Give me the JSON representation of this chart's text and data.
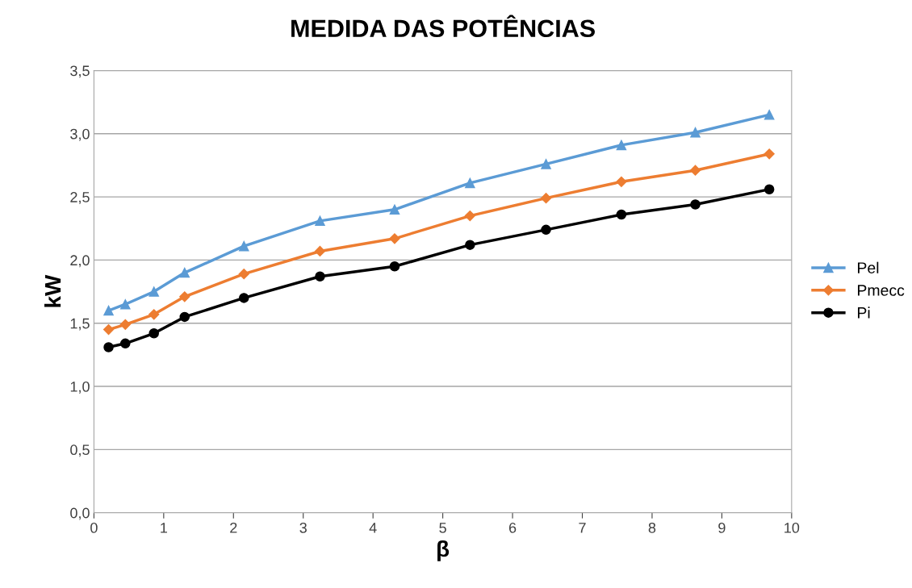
{
  "chart_data": {
    "type": "line",
    "title": "MEDIDA DAS POTÊNCIAS",
    "xlabel": "β",
    "ylabel": "kW",
    "x": [
      0.21,
      0.45,
      0.86,
      1.3,
      2.15,
      3.24,
      4.31,
      5.39,
      6.48,
      7.56,
      8.62,
      9.68
    ],
    "series": [
      {
        "name": "Pel",
        "color": "#5b9bd5",
        "marker": "triangle",
        "values": [
          1.6,
          1.65,
          1.75,
          1.9,
          2.11,
          2.31,
          2.4,
          2.61,
          2.76,
          2.91,
          3.01,
          3.15
        ]
      },
      {
        "name": "Pmecc",
        "color": "#ed7d31",
        "marker": "diamond",
        "values": [
          1.45,
          1.49,
          1.57,
          1.71,
          1.89,
          2.07,
          2.17,
          2.35,
          2.49,
          2.62,
          2.71,
          2.84
        ]
      },
      {
        "name": "Pi",
        "color": "#000000",
        "marker": "circle",
        "values": [
          1.31,
          1.34,
          1.42,
          1.55,
          1.7,
          1.87,
          1.95,
          2.12,
          2.24,
          2.36,
          2.44,
          2.56
        ]
      }
    ],
    "xlim": [
      0,
      10
    ],
    "xticks": [
      0,
      1,
      2,
      3,
      4,
      5,
      6,
      7,
      8,
      9,
      10
    ],
    "ylim": [
      0,
      3.5
    ],
    "yticks": [
      {
        "value": 0,
        "label": "0,0"
      },
      {
        "value": 0.5,
        "label": "0,5"
      },
      {
        "value": 1,
        "label": "1,0"
      },
      {
        "value": 1.5,
        "label": "1,5"
      },
      {
        "value": 2,
        "label": "2,0"
      },
      {
        "value": 2.5,
        "label": "2,5"
      },
      {
        "value": 3,
        "label": "3,0"
      },
      {
        "value": 3.5,
        "label": "3,5"
      }
    ],
    "grid": "y",
    "legend": "right",
    "line_style": "solid"
  }
}
